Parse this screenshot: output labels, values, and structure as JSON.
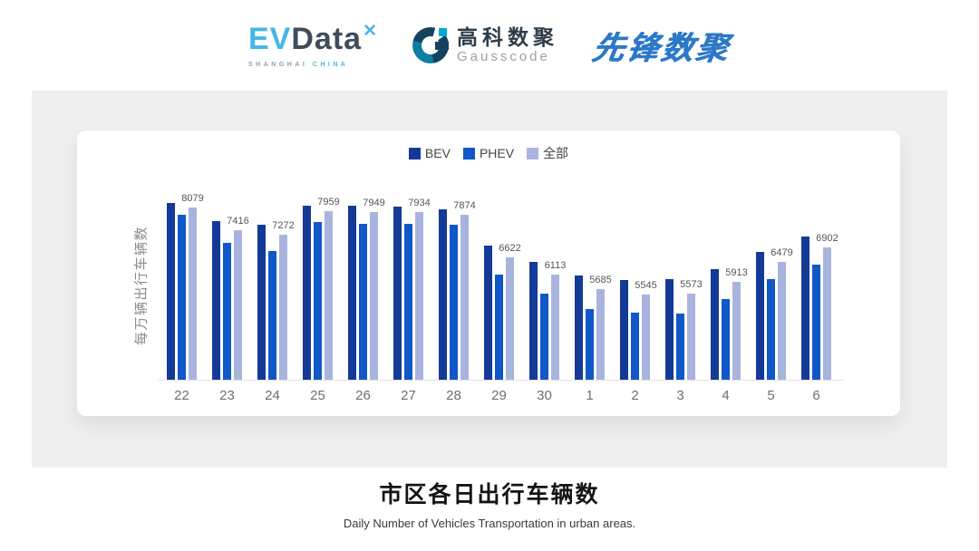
{
  "header": {
    "evdata": {
      "ev": "EV",
      "data": "Data",
      "spark_icon": "✕",
      "sub_left": "SHANGHAI",
      "sub_right": "CHINA"
    },
    "gausscode": {
      "cjk": "高科数聚",
      "latin": "Gausscode"
    },
    "xianfeng": {
      "text": "先锋数聚"
    }
  },
  "chart_data": {
    "type": "bar",
    "title": "市区各日出行车辆数",
    "subtitle": "Daily Number of Vehicles Transportation in urban areas.",
    "ylabel": "每万辆出行车辆数",
    "xlabel": "",
    "legend_position": "top",
    "grid": false,
    "ylim": [
      3050,
      8600
    ],
    "categories": [
      "22",
      "23",
      "24",
      "25",
      "26",
      "27",
      "28",
      "29",
      "30",
      "1",
      "2",
      "3",
      "4",
      "5",
      "6"
    ],
    "series": [
      {
        "name": "BEV",
        "key": "bev",
        "color": "#133a96",
        "show_labels": false,
        "values": [
          8210,
          7670,
          7570,
          8130,
          8130,
          8110,
          8030,
          6950,
          6480,
          6100,
          5960,
          5980,
          6280,
          6780,
          7240
        ]
      },
      {
        "name": "PHEV",
        "key": "phev",
        "color": "#1057c8",
        "show_labels": false,
        "values": [
          7850,
          7030,
          6810,
          7650,
          7600,
          7600,
          7570,
          6110,
          5550,
          5100,
          5000,
          4980,
          5410,
          5980,
          6400
        ]
      },
      {
        "name": "全部",
        "key": "all",
        "color": "#a9b4de",
        "show_labels": true,
        "values": [
          8079,
          7416,
          7272,
          7959,
          7949,
          7934,
          7874,
          6622,
          6113,
          5685,
          5545,
          5573,
          5913,
          6479,
          6902
        ]
      }
    ]
  },
  "footer": {
    "title": "市区各日出行车辆数",
    "subtitle": "Daily Number of Vehicles Transportation in urban areas."
  },
  "colors": {
    "panel_bg": "#efeff0",
    "card_bg": "#ffffff",
    "axis_line": "#e3e3e3",
    "tick_label": "#6e6e6e",
    "data_label": "#555555",
    "ylabel_text": "#8c8c8c",
    "legend_text": "#444444",
    "bev": "#133a96",
    "phev": "#1057c8",
    "all": "#a9b4de",
    "brand_cyan": "#45b7e6",
    "brand_slate": "#3e4d5c",
    "brand_navy": "#14425f",
    "brand_teal": "#0d7fa0",
    "brand_teal_bright": "#00a9d2",
    "xianfeng_blue": "#2c78c8"
  }
}
